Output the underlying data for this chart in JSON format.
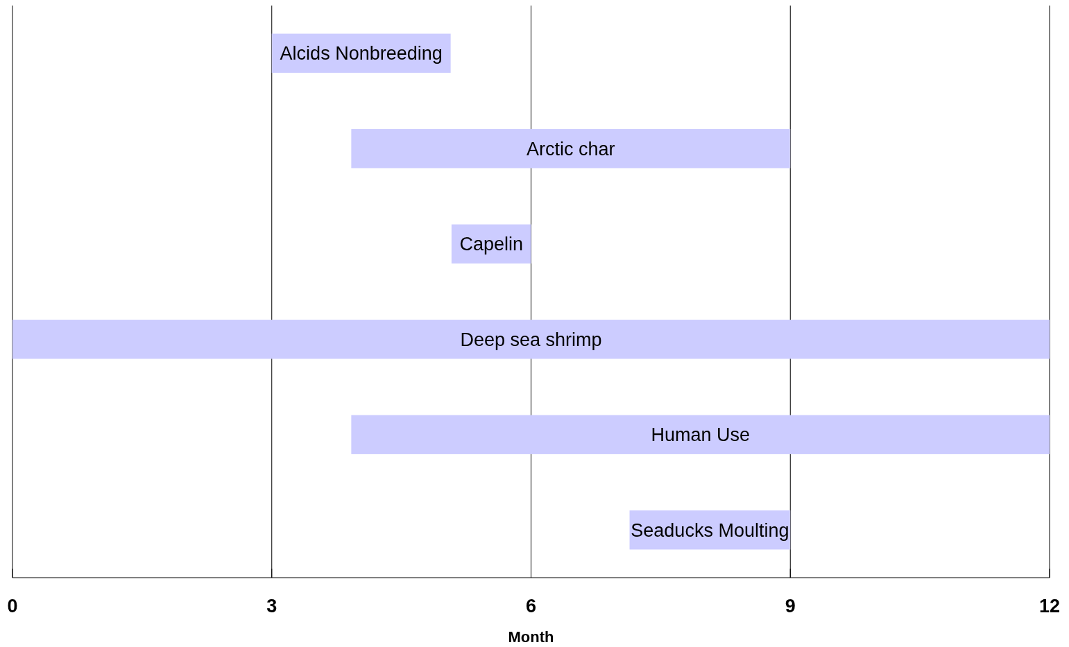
{
  "chart_data": {
    "type": "bar",
    "orientation": "horizontal",
    "categories": [
      "Alcids Nonbreeding",
      "Arctic char",
      "Capelin",
      "Deep sea shrimp",
      "Human Use",
      "Seaducks Moulting"
    ],
    "base": [
      3,
      3.92,
      5.08,
      0,
      3.92,
      7.14
    ],
    "values": [
      2.07,
      5.08,
      0.92,
      12,
      8.08,
      1.86
    ],
    "color": "#ccccff",
    "xlim": [
      0,
      12
    ],
    "xticks": [
      0,
      3,
      6,
      9,
      12
    ],
    "xlabel": "Month",
    "grid": "x",
    "tick_labels": "x"
  }
}
